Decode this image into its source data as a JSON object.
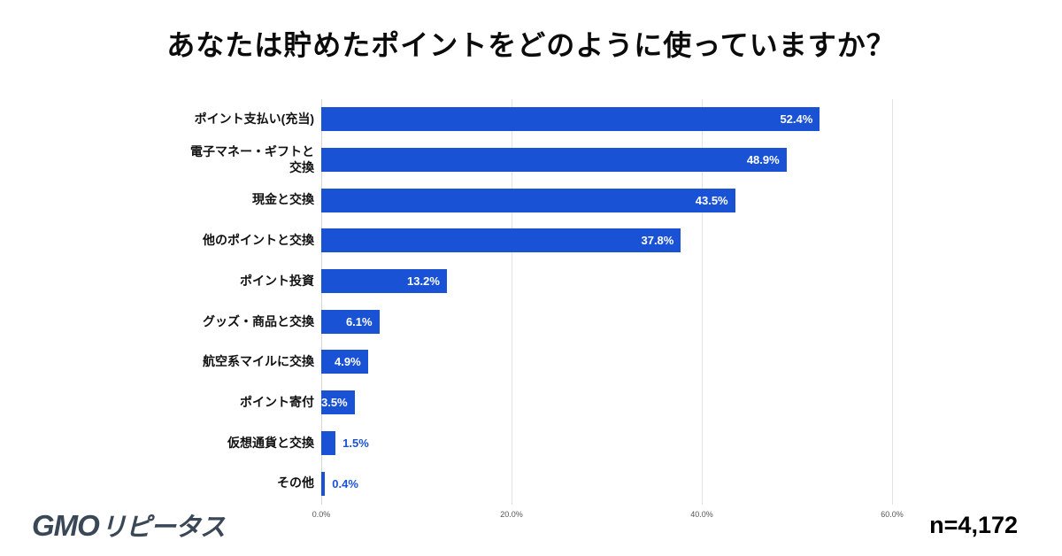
{
  "title": "あなたは貯めたポイントをどのように使っていますか？",
  "footer": {
    "logo_gmo": "GMO",
    "logo_brand": "リピータス",
    "sample_size": "n=4,172"
  },
  "chart_data": {
    "type": "bar",
    "orientation": "horizontal",
    "title": "あなたは貯めたポイントをどのように使っていますか？",
    "categories": [
      "ポイント支払い(充当)",
      "電子マネー・ギフトと\n交換",
      "現金と交換",
      "他のポイントと交換",
      "ポイント投資",
      "グッズ・商品と交換",
      "航空系マイルに交換",
      "ポイント寄付",
      "仮想通貨と交換",
      "その他"
    ],
    "values": [
      52.4,
      48.9,
      43.5,
      37.8,
      13.2,
      6.1,
      4.9,
      3.5,
      1.5,
      0.4
    ],
    "value_labels": [
      "52.4%",
      "48.9%",
      "43.5%",
      "37.8%",
      "13.2%",
      "6.1%",
      "4.9%",
      "3.5%",
      "1.5%",
      "0.4%"
    ],
    "x_ticks": [
      "0.0%",
      "20.0%",
      "40.0%",
      "60.0%"
    ],
    "xlim": [
      0,
      60
    ],
    "grid": true,
    "legend": "none",
    "bar_color": "#1a52d6",
    "label_inside_color": "#ffffff",
    "label_outside_color": "#1a52d6",
    "sample_size": "n=4,172"
  }
}
